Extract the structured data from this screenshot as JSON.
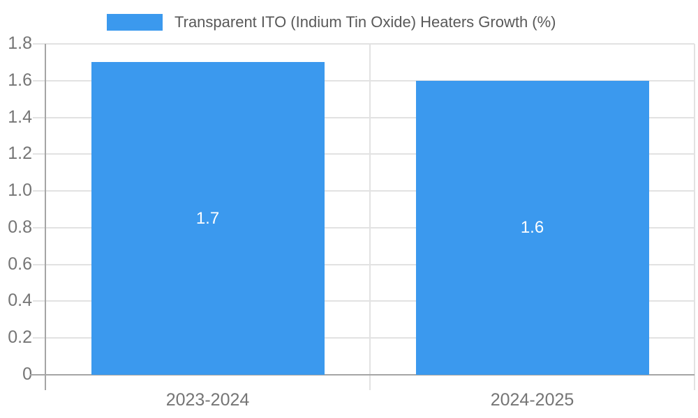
{
  "legend": {
    "label": "Transparent ITO (Indium Tin Oxide) Heaters Growth (%)"
  },
  "chart_data": {
    "type": "bar",
    "title": "Transparent ITO (Indium Tin Oxide) Heaters Growth (%)",
    "categories": [
      "2023-2024",
      "2024-2025"
    ],
    "values": [
      1.7,
      1.6
    ],
    "bar_labels": [
      "1.7",
      "1.6"
    ],
    "xlabel": "",
    "ylabel": "",
    "ylim": [
      0,
      1.8
    ],
    "ytick_step": 0.2,
    "yticks": [
      {
        "label": "1.8",
        "value": 1.8
      },
      {
        "label": "1.6",
        "value": 1.6
      },
      {
        "label": "1.4",
        "value": 1.4
      },
      {
        "label": "1.2",
        "value": 1.2
      },
      {
        "label": "1.0",
        "value": 1.0
      },
      {
        "label": "0.8",
        "value": 0.8
      },
      {
        "label": "0.6",
        "value": 0.6
      },
      {
        "label": "0.4",
        "value": 0.4
      },
      {
        "label": "0.2",
        "value": 0.2
      },
      {
        "label": "0",
        "value": 0
      }
    ],
    "grid": true,
    "legend_position": "top"
  },
  "colors": {
    "bar": "#3b99ee",
    "bar_label": "#ffffff",
    "grid_line": "#e2e2e2",
    "axis_line": "#a5a5a5",
    "tick_text": "#757575",
    "legend_text": "#595959",
    "background": "#ffffff"
  }
}
